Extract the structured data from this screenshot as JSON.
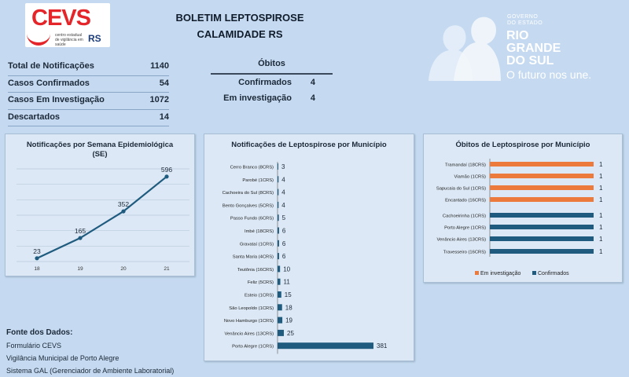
{
  "header": {
    "logo_text": "CEVS",
    "logo_subtext": "centro estadual de vigilância em saúde",
    "logo_rs": "RS",
    "title_line1": "BOLETIM LEPTOSPIROSE",
    "title_line2": "CALAMIDADE RS",
    "gov_line1": "GOVERNO",
    "gov_line2": "DO ESTADO",
    "gov_name1": "RIO",
    "gov_name2": "GRANDE",
    "gov_name3": "DO SUL",
    "gov_slogan": "O futuro nos une."
  },
  "summary": [
    {
      "label": "Total de Notificações",
      "value": "1140"
    },
    {
      "label": "Casos Confirmados",
      "value": "54"
    },
    {
      "label": "Casos Em Investigação",
      "value": "1072"
    },
    {
      "label": "Descartados",
      "value": "14"
    }
  ],
  "obitos": {
    "title": "Óbitos",
    "rows": [
      {
        "label": "Confirmados",
        "value": "4"
      },
      {
        "label": "Em investigação",
        "value": "4"
      }
    ]
  },
  "sources": {
    "heading": "Fonte dos Dados:",
    "items": [
      "Formulário CEVS",
      "Vigilância Municipal de Porto Alegre",
      "Sistema GAL (Gerenciador de Ambiente Laboratorial)"
    ]
  },
  "colors": {
    "bar": "#1f5b7e",
    "line": "#1f5b7e",
    "investigacao": "#ec7a3c",
    "confirmados": "#1f5b7e"
  },
  "chart_data": [
    {
      "type": "line",
      "title": "Notificações por Semana Epidemiológica (SE)",
      "x": [
        "18",
        "19",
        "20",
        "21"
      ],
      "values": [
        23,
        165,
        352,
        596
      ],
      "ylim": [
        0,
        650
      ],
      "grid": true
    },
    {
      "type": "bar",
      "orientation": "horizontal",
      "title": "Notificações de Leptospirose por Município",
      "categories": [
        "Cerro Branco (8CRS)",
        "Parobé (1CRS)",
        "Cachoeira do Sul (8CRS)",
        "Bento Gonçalves (5CRS)",
        "Passo Fundo (6CRS)",
        "Imbé (18CRS)",
        "Gravataí (1CRS)",
        "Santa Maria (4CRS)",
        "Teutônia (16CRS)",
        "Feliz (5CRS)",
        "Esteio (1CRS)",
        "São Leopoldo (1CRS)",
        "Novo Hamburgo (1CRS)",
        "Venâncio Aires (13CRS)",
        "Porto Alegre (1CRS)"
      ],
      "values": [
        3,
        4,
        4,
        4,
        5,
        6,
        6,
        6,
        10,
        11,
        15,
        18,
        19,
        25,
        381
      ],
      "xlim": [
        0,
        381
      ]
    },
    {
      "type": "bar",
      "orientation": "horizontal",
      "title": "Óbitos de Leptospirose por Município",
      "categories": [
        "Tramandaí (18CRS)",
        "Viamão (1CRS)",
        "Sapucaia do Sul (1CRS)",
        "Encantado (16CRS)",
        "Cachoeirinha (1CRS)",
        "Porto Alegre (1CRS)",
        "Venâncio Aires (13CRS)",
        "Travesseiro (16CRS)"
      ],
      "series": [
        {
          "name": "Em investigação",
          "values": [
            1,
            1,
            1,
            1,
            0,
            0,
            0,
            0
          ]
        },
        {
          "name": "Confirmados",
          "values": [
            0,
            0,
            0,
            0,
            1,
            1,
            1,
            1
          ]
        }
      ],
      "xlim": [
        0,
        1
      ],
      "legend": "bottom"
    }
  ]
}
